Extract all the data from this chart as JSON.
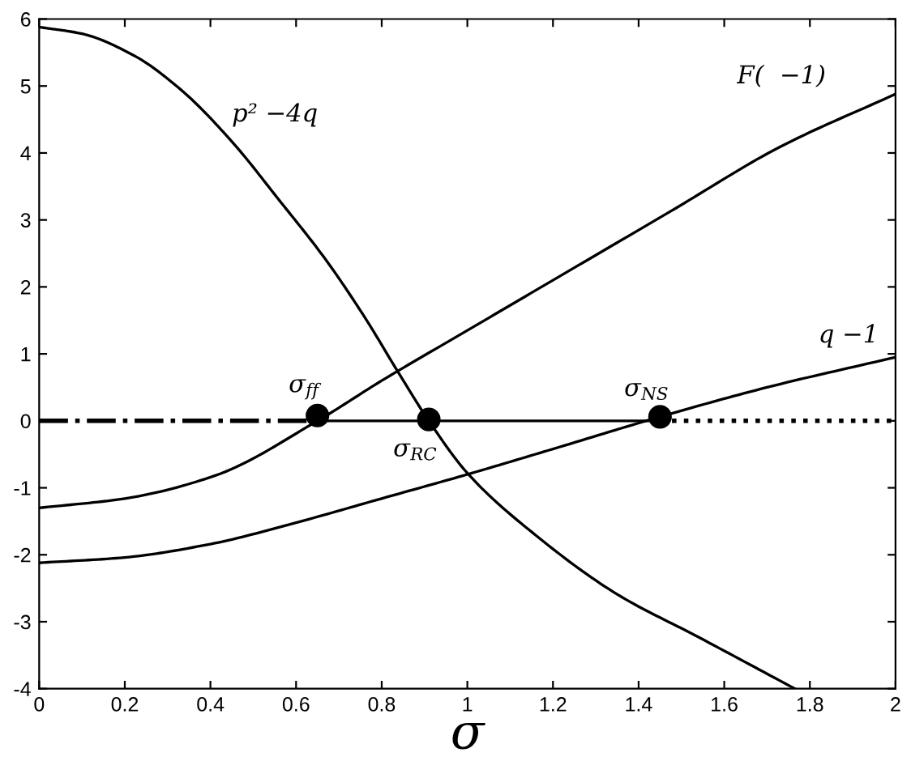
{
  "chart_data": {
    "type": "line",
    "xlabel": "σ",
    "xlim": [
      0,
      2
    ],
    "ylim": [
      -4,
      6
    ],
    "xticks": [
      0,
      0.2,
      0.4,
      0.6,
      0.8,
      1,
      1.2,
      1.4,
      1.6,
      1.8,
      2
    ],
    "yticks": [
      -4,
      -3,
      -2,
      -1,
      0,
      1,
      2,
      3,
      4,
      5,
      6
    ],
    "grid": false,
    "series": [
      {
        "name": "p² −4q",
        "color": "#000000",
        "line_style": "solid",
        "x": [
          0,
          0.1,
          0.22,
          0.33,
          0.45,
          0.56,
          0.67,
          0.76,
          0.84,
          0.91,
          1.0,
          1.16,
          1.35,
          1.54,
          1.765
        ],
        "values": [
          5.88,
          5.78,
          5.46,
          4.95,
          4.17,
          3.3,
          2.4,
          1.55,
          0.71,
          0.0,
          -0.78,
          -1.71,
          -2.59,
          -3.23,
          -4.0
        ]
      },
      {
        "name": "F(  −1)",
        "color": "#000000",
        "line_style": "solid",
        "x": [
          0,
          0.2,
          0.41,
          0.65,
          0.8,
          1.0,
          1.2,
          1.475,
          1.73,
          2.0
        ],
        "values": [
          -1.3,
          -1.16,
          -0.82,
          0.0,
          0.6,
          1.35,
          2.1,
          3.13,
          4.09,
          4.88
        ]
      },
      {
        "name": "q −1",
        "color": "#000000",
        "line_style": "solid",
        "x": [
          0,
          0.2,
          0.4,
          0.6,
          0.8,
          1.0,
          1.2,
          1.45,
          1.7,
          2.0
        ],
        "values": [
          -2.12,
          -2.04,
          -1.84,
          -1.52,
          -1.16,
          -0.8,
          -0.42,
          0.06,
          0.5,
          0.95
        ]
      },
      {
        "color": "#000000",
        "line_style": "dashdot",
        "x": [
          0,
          0.65
        ],
        "values": [
          0,
          0
        ]
      },
      {
        "color": "#000000",
        "line_style": "solid",
        "x": [
          0.65,
          1.45
        ],
        "values": [
          0,
          0
        ]
      },
      {
        "color": "#000000",
        "line_style": "dotted",
        "x": [
          1.45,
          2.0
        ],
        "values": [
          0,
          0
        ]
      },
      {
        "type": "scatter",
        "color": "#000000",
        "marker": "circle",
        "x": [
          0.65,
          0.91,
          1.45
        ],
        "values": [
          0.08,
          0.02,
          0.06
        ],
        "value_labels": [
          "σ$_{ff}$",
          "σ$_{RC}$",
          "σ$_{NS}$"
        ]
      }
    ]
  }
}
